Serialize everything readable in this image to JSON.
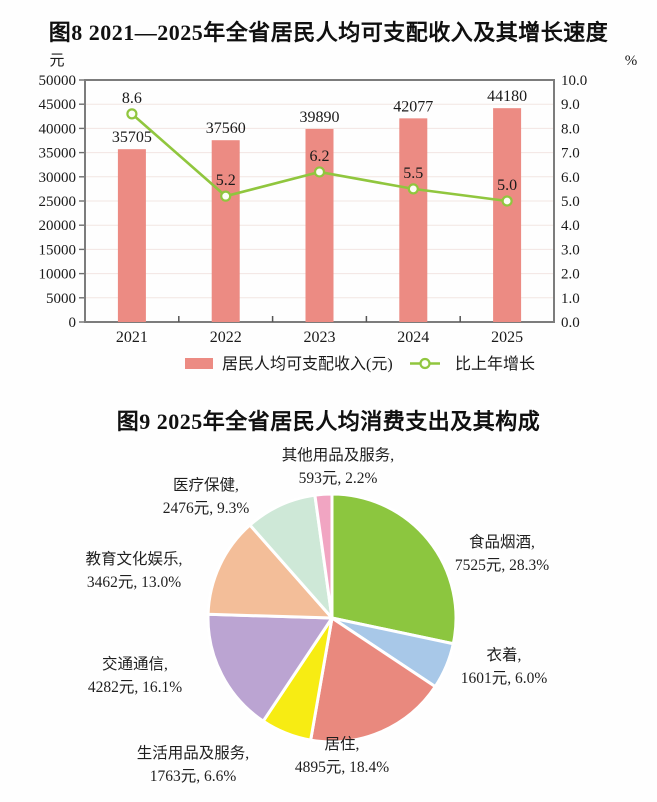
{
  "chart_data": [
    {
      "type": "combo-bar-line",
      "title": "图8 2021—2025年全省居民人均可支配收入及其增长速度",
      "categories": [
        "2021",
        "2022",
        "2023",
        "2024",
        "2025"
      ],
      "series": [
        {
          "name": "居民人均可支配收入(元)",
          "type": "bar",
          "axis": "left",
          "values": [
            35705,
            37560,
            39890,
            42077,
            44180
          ],
          "color": "#EC8B83"
        },
        {
          "name": "比上年增长",
          "type": "line",
          "axis": "right",
          "values": [
            8.6,
            5.2,
            6.2,
            5.5,
            5.0
          ],
          "color": "#90C63E",
          "marker_fill": "#FCFEF6"
        }
      ],
      "left_axis": {
        "unit": "元",
        "min": 0,
        "max": 50000,
        "step": 5000
      },
      "right_axis": {
        "unit": "%",
        "min": 0,
        "max": 10,
        "step": 1,
        "decimals": 1
      },
      "grid": true,
      "legend_position": "bottom",
      "axis_color": "#7C7C7C",
      "grid_color": "#F2E5E2",
      "text_color": "#1A1A1A"
    },
    {
      "type": "pie",
      "title": "图9 2025年全省居民人均消费支出及其构成",
      "start_angle": "12-oclock",
      "direction": "clockwise",
      "slices": [
        {
          "name": "食品烟酒",
          "value_yuan": 7525,
          "percent": 28.3,
          "color": "#8CC63F",
          "label_line1": "食品烟酒,",
          "label_line2": "7525元, 28.3%"
        },
        {
          "name": "衣着",
          "value_yuan": 1601,
          "percent": 6.0,
          "color": "#A8C8E8",
          "label_line1": "衣着,",
          "label_line2": "1601元, 6.0%"
        },
        {
          "name": "居住",
          "value_yuan": 4895,
          "percent": 18.4,
          "color": "#E9897E",
          "label_line1": "居住,",
          "label_line2": "4895元, 18.4%"
        },
        {
          "name": "生活用品及服务",
          "value_yuan": 1763,
          "percent": 6.6,
          "color": "#F7EC13",
          "label_line1": "生活用品及服务,",
          "label_line2": "1763元, 6.6%"
        },
        {
          "name": "交通通信",
          "value_yuan": 4282,
          "percent": 16.1,
          "color": "#BBA4D2",
          "label_line1": "交通通信,",
          "label_line2": "4282元, 16.1%"
        },
        {
          "name": "教育文化娱乐",
          "value_yuan": 3462,
          "percent": 13.0,
          "color": "#F3BE99",
          "label_line1": "教育文化娱乐,",
          "label_line2": "3462元, 13.0%"
        },
        {
          "name": "医疗保健",
          "value_yuan": 2476,
          "percent": 9.3,
          "color": "#CEE8D7",
          "label_line1": "医疗保健,",
          "label_line2": "2476元, 9.3%"
        },
        {
          "name": "其他用品及服务",
          "value_yuan": 593,
          "percent": 2.2,
          "color": "#F1A5C2",
          "label_line1": "其他用品及服务,",
          "label_line2": "593元, 2.2%"
        }
      ]
    }
  ]
}
